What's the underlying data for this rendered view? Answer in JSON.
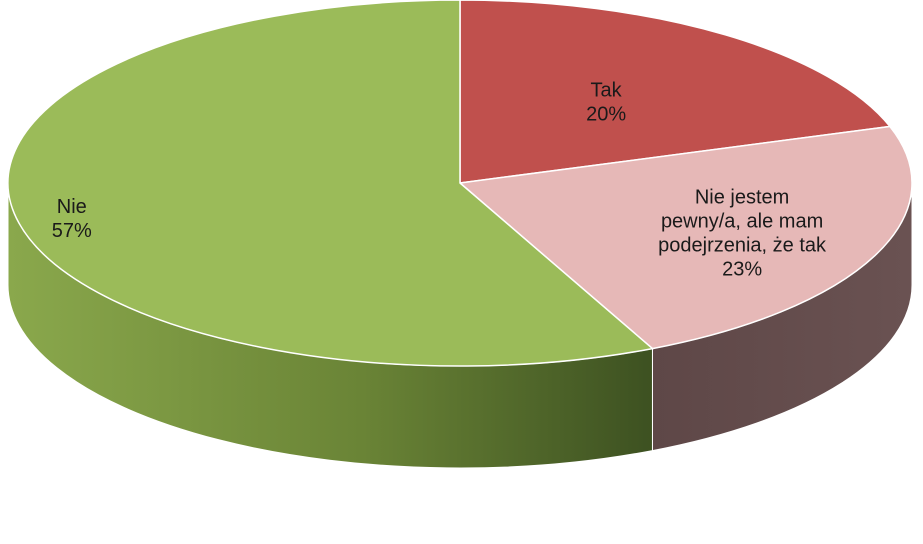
{
  "chart_data": {
    "type": "pie",
    "style": "3d",
    "title": "",
    "slices": [
      {
        "label_lines": [
          "Tak"
        ],
        "value": 20,
        "value_label": "20%",
        "color": "#c0504d"
      },
      {
        "label_lines": [
          "Nie jestem",
          "pewny/a, ale mam",
          "podejrzenia, że tak"
        ],
        "value": 23,
        "value_label": "23%",
        "color": "#e6b8b7"
      },
      {
        "label_lines": [
          "Nie"
        ],
        "value": 57,
        "value_label": "57%",
        "color": "#9bbb59"
      }
    ],
    "legend": "none"
  }
}
